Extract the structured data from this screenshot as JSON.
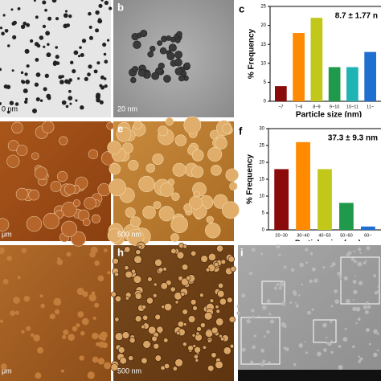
{
  "panels": {
    "b": "b",
    "c": "c",
    "e": "e",
    "f": "f",
    "h": "h",
    "i": "i",
    "scale_a": "0 nm",
    "scale_b": "20 nm",
    "scale_d": "μm",
    "scale_e": "500 nm",
    "scale_g": "μm",
    "scale_h": "500 nm"
  },
  "chart_data": [
    {
      "type": "bar",
      "panel": "c",
      "annotation": "8.7 ± 1.77 n",
      "y_label": "% Frequency",
      "x_label": "Particle size (nm)",
      "categories": [
        "~7",
        "7~8",
        "8~9",
        "9~10",
        "10~11",
        "11~"
      ],
      "values": [
        4,
        18,
        22,
        9,
        9,
        13
      ],
      "colors": [
        "#8b0a0a",
        "#ff8a00",
        "#c2c81a",
        "#1f9a4a",
        "#1fb3b3",
        "#1e6fd0"
      ],
      "ylim": [
        0,
        25
      ],
      "yticks": [
        0,
        5,
        10,
        15,
        20,
        25
      ]
    },
    {
      "type": "bar",
      "panel": "f",
      "annotation": "37.3 ± 9.3 nm",
      "y_label": "% Frequency",
      "x_label": "Particle size (nm)",
      "categories": [
        "20~30",
        "30~40",
        "40~50",
        "50~60",
        "60~"
      ],
      "values": [
        18,
        26,
        18,
        8,
        1
      ],
      "colors": [
        "#8b0a0a",
        "#ff8a00",
        "#c2c81a",
        "#1f9a4a",
        "#1e6fd0"
      ],
      "ylim": [
        0,
        30
      ],
      "yticks": [
        0,
        5,
        10,
        15,
        20,
        25,
        30
      ]
    }
  ]
}
